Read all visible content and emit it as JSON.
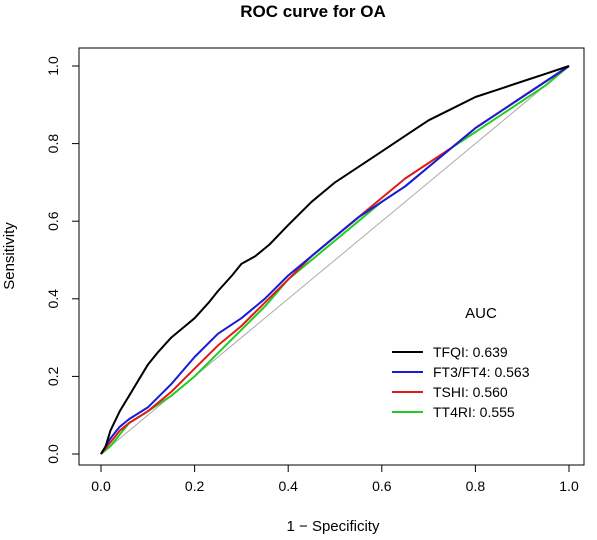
{
  "chart_data": {
    "type": "line",
    "title": "ROC curve for OA",
    "xlabel": "1 − Specificity",
    "ylabel": "Sensitivity",
    "xlim": [
      0,
      1
    ],
    "ylim": [
      0,
      1
    ],
    "xticks": [
      "0.0",
      "0.2",
      "0.4",
      "0.6",
      "0.8",
      "1.0"
    ],
    "yticks": [
      "0.0",
      "0.2",
      "0.4",
      "0.6",
      "0.8",
      "1.0"
    ],
    "grid": false,
    "legend": {
      "title": "AUC",
      "placement": "bottom-right"
    },
    "reference_line": {
      "color": "#aaaaaa",
      "points": [
        [
          0,
          0
        ],
        [
          1,
          1
        ]
      ]
    },
    "series": [
      {
        "name": "TFQI: 0.639",
        "color": "#000000",
        "x": [
          0,
          0.01,
          0.02,
          0.04,
          0.06,
          0.08,
          0.1,
          0.12,
          0.15,
          0.18,
          0.2,
          0.23,
          0.25,
          0.28,
          0.3,
          0.33,
          0.36,
          0.4,
          0.45,
          0.5,
          0.55,
          0.6,
          0.65,
          0.7,
          0.75,
          0.8,
          0.85,
          0.9,
          0.95,
          1.0
        ],
        "y": [
          0,
          0.02,
          0.06,
          0.11,
          0.15,
          0.19,
          0.23,
          0.26,
          0.3,
          0.33,
          0.35,
          0.39,
          0.42,
          0.46,
          0.49,
          0.51,
          0.54,
          0.59,
          0.65,
          0.7,
          0.74,
          0.78,
          0.82,
          0.86,
          0.89,
          0.92,
          0.94,
          0.96,
          0.98,
          1.0
        ]
      },
      {
        "name": "FT3/FT4: 0.563",
        "color": "#1a1ad8",
        "x": [
          0,
          0.02,
          0.04,
          0.06,
          0.1,
          0.15,
          0.2,
          0.25,
          0.3,
          0.35,
          0.4,
          0.45,
          0.5,
          0.55,
          0.6,
          0.65,
          0.7,
          0.75,
          0.8,
          0.85,
          0.9,
          0.95,
          1.0
        ],
        "y": [
          0,
          0.04,
          0.07,
          0.09,
          0.12,
          0.18,
          0.25,
          0.31,
          0.35,
          0.4,
          0.46,
          0.51,
          0.56,
          0.61,
          0.65,
          0.69,
          0.74,
          0.79,
          0.84,
          0.88,
          0.92,
          0.96,
          1.0
        ]
      },
      {
        "name": "TSHI: 0.560",
        "color": "#e01a1a",
        "x": [
          0,
          0.02,
          0.04,
          0.06,
          0.1,
          0.15,
          0.2,
          0.25,
          0.3,
          0.35,
          0.4,
          0.45,
          0.5,
          0.55,
          0.6,
          0.65,
          0.7,
          0.75,
          0.8,
          0.85,
          0.9,
          0.95,
          1.0
        ],
        "y": [
          0,
          0.03,
          0.06,
          0.08,
          0.11,
          0.16,
          0.22,
          0.28,
          0.33,
          0.39,
          0.45,
          0.51,
          0.56,
          0.61,
          0.66,
          0.71,
          0.75,
          0.79,
          0.84,
          0.88,
          0.92,
          0.96,
          1.0
        ]
      },
      {
        "name": "TT4RI: 0.555",
        "color": "#22cc22",
        "x": [
          0,
          0.02,
          0.04,
          0.06,
          0.1,
          0.15,
          0.2,
          0.25,
          0.3,
          0.35,
          0.4,
          0.45,
          0.5,
          0.55,
          0.6,
          0.65,
          0.7,
          0.75,
          0.8,
          0.85,
          0.9,
          0.95,
          1.0
        ],
        "y": [
          0,
          0.02,
          0.05,
          0.08,
          0.11,
          0.15,
          0.2,
          0.26,
          0.32,
          0.38,
          0.45,
          0.5,
          0.55,
          0.6,
          0.65,
          0.69,
          0.74,
          0.79,
          0.83,
          0.87,
          0.91,
          0.95,
          1.0
        ]
      }
    ]
  }
}
